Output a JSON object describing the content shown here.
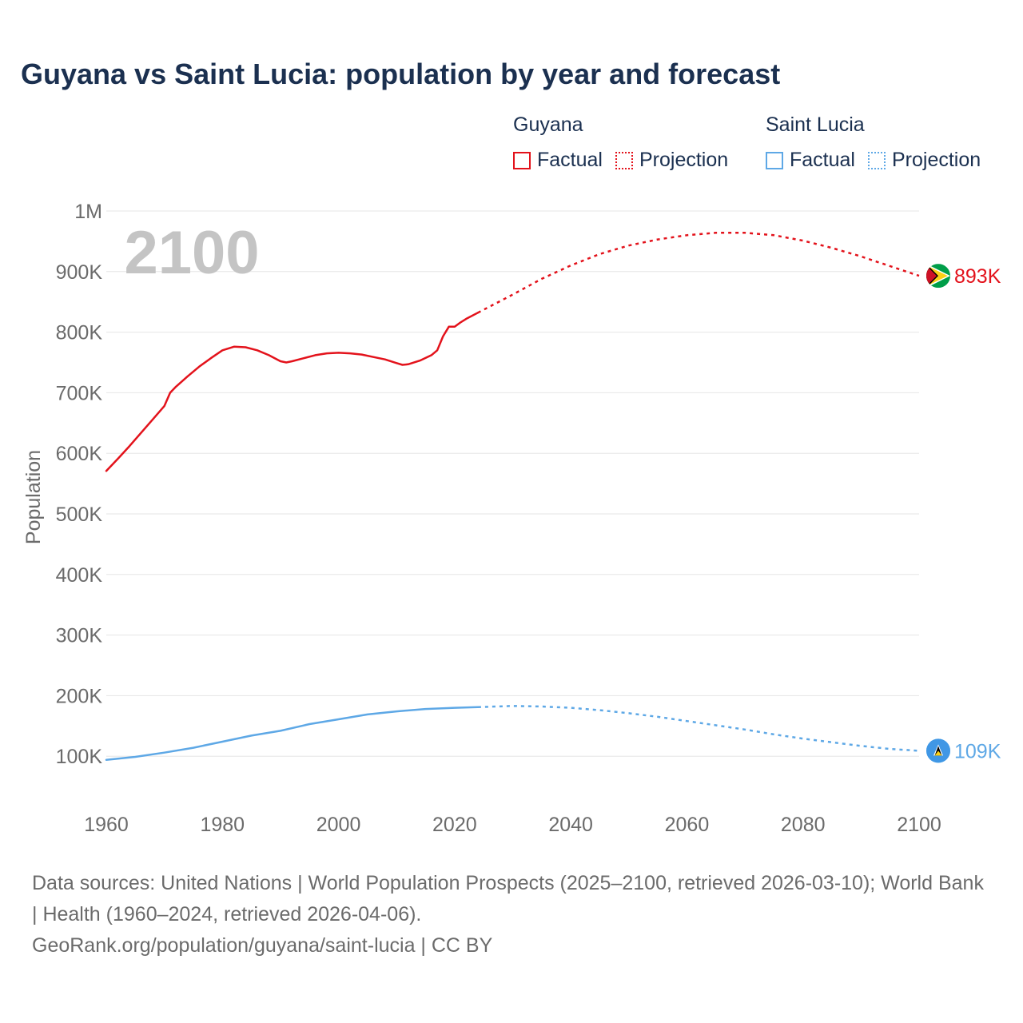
{
  "title": "Guyana vs Saint Lucia: population by year and forecast",
  "legend": {
    "groups": [
      {
        "name": "Guyana",
        "factual_label": "Factual",
        "projection_label": "Projection",
        "color": "#e3121b"
      },
      {
        "name": "Saint Lucia",
        "factual_label": "Factual",
        "projection_label": "Projection",
        "color": "#5ea8e6"
      }
    ]
  },
  "year_watermark": "2100",
  "footer": {
    "sources": "Data sources: United Nations | World Population Prospects (2025–2100, retrieved 2026-03-10); World Bank | Health (1960–2024, retrieved 2026-04-06).",
    "credit": "GeoRank.org/population/guyana/saint-lucia | CC BY"
  },
  "chart_data": {
    "type": "line",
    "title": "Guyana vs Saint Lucia: population by year and forecast",
    "xlabel": "",
    "ylabel": "Population",
    "xlim": [
      1960,
      2100
    ],
    "ylim": [
      0,
      1000000
    ],
    "x_ticks": [
      1960,
      1980,
      2000,
      2020,
      2040,
      2060,
      2080,
      2100
    ],
    "x_tick_labels": [
      "1960",
      "1980",
      "2000",
      "2020",
      "2040",
      "2060",
      "2080",
      "2100"
    ],
    "y_ticks": [
      100000,
      200000,
      300000,
      400000,
      500000,
      600000,
      700000,
      800000,
      900000,
      1000000
    ],
    "y_tick_labels": [
      "100K",
      "200K",
      "300K",
      "400K",
      "500K",
      "600K",
      "700K",
      "800K",
      "900K",
      "1M"
    ],
    "grid": true,
    "series": [
      {
        "name": "Guyana",
        "color": "#e3121b",
        "end_label": "893K",
        "factual": [
          [
            1960,
            571000
          ],
          [
            1962,
            591000
          ],
          [
            1964,
            612000
          ],
          [
            1966,
            634000
          ],
          [
            1968,
            656000
          ],
          [
            1970,
            678000
          ],
          [
            1971,
            700000
          ],
          [
            1972,
            710000
          ],
          [
            1974,
            727000
          ],
          [
            1976,
            743000
          ],
          [
            1978,
            757000
          ],
          [
            1980,
            770000
          ],
          [
            1982,
            776000
          ],
          [
            1984,
            775000
          ],
          [
            1986,
            770000
          ],
          [
            1988,
            762000
          ],
          [
            1990,
            752000
          ],
          [
            1991,
            750000
          ],
          [
            1992,
            752000
          ],
          [
            1994,
            757000
          ],
          [
            1996,
            762000
          ],
          [
            1998,
            765000
          ],
          [
            2000,
            766000
          ],
          [
            2002,
            765000
          ],
          [
            2004,
            763000
          ],
          [
            2006,
            759000
          ],
          [
            2008,
            755000
          ],
          [
            2010,
            749000
          ],
          [
            2011,
            746000
          ],
          [
            2012,
            747000
          ],
          [
            2014,
            753000
          ],
          [
            2016,
            762000
          ],
          [
            2017,
            770000
          ],
          [
            2018,
            793000
          ],
          [
            2019,
            809000
          ],
          [
            2020,
            809000
          ],
          [
            2021,
            816000
          ],
          [
            2022,
            822000
          ],
          [
            2024,
            832000
          ]
        ],
        "projection": [
          [
            2024,
            832000
          ],
          [
            2030,
            862000
          ],
          [
            2035,
            888000
          ],
          [
            2040,
            910000
          ],
          [
            2045,
            929000
          ],
          [
            2050,
            943000
          ],
          [
            2055,
            953000
          ],
          [
            2060,
            960000
          ],
          [
            2065,
            964000
          ],
          [
            2070,
            964000
          ],
          [
            2075,
            960000
          ],
          [
            2080,
            951000
          ],
          [
            2085,
            939000
          ],
          [
            2090,
            925000
          ],
          [
            2095,
            909000
          ],
          [
            2100,
            893000
          ]
        ]
      },
      {
        "name": "Saint Lucia",
        "color": "#5ea8e6",
        "end_label": "109K",
        "factual": [
          [
            1960,
            94000
          ],
          [
            1965,
            99000
          ],
          [
            1970,
            106000
          ],
          [
            1975,
            114000
          ],
          [
            1980,
            124000
          ],
          [
            1985,
            134000
          ],
          [
            1990,
            142000
          ],
          [
            1995,
            153000
          ],
          [
            2000,
            161000
          ],
          [
            2005,
            169000
          ],
          [
            2010,
            174000
          ],
          [
            2015,
            178000
          ],
          [
            2020,
            180000
          ],
          [
            2024,
            181000
          ]
        ],
        "projection": [
          [
            2024,
            181000
          ],
          [
            2030,
            183000
          ],
          [
            2035,
            182000
          ],
          [
            2040,
            180000
          ],
          [
            2045,
            176000
          ],
          [
            2050,
            171000
          ],
          [
            2055,
            165000
          ],
          [
            2060,
            158000
          ],
          [
            2065,
            151000
          ],
          [
            2070,
            144000
          ],
          [
            2075,
            136000
          ],
          [
            2080,
            129000
          ],
          [
            2085,
            123000
          ],
          [
            2090,
            117000
          ],
          [
            2095,
            112000
          ],
          [
            2100,
            109000
          ]
        ]
      }
    ]
  }
}
